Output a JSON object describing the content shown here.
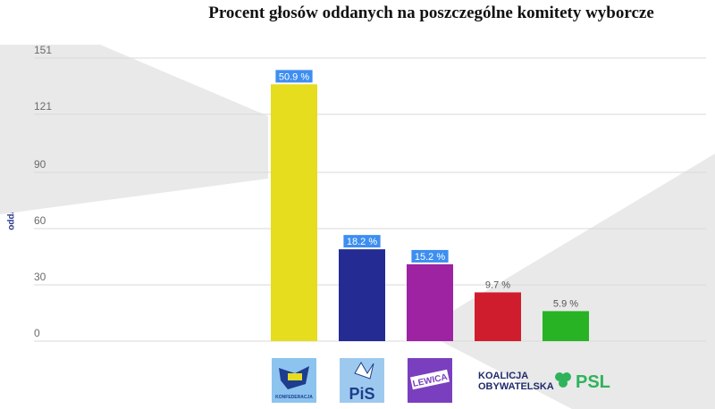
{
  "chart_data": {
    "type": "bar",
    "title": "Procent głosów oddanych na poszczególne komitety wyborcze",
    "ylabel": "oddanych głosów",
    "xlabel": "",
    "ylim": [
      0,
      151
    ],
    "yticks": [
      0,
      30,
      60,
      90,
      121,
      151
    ],
    "grid": true,
    "categories": [
      "Konfederacja",
      "PiS",
      "Lewica",
      "Koalicja Obywatelska",
      "PSL"
    ],
    "values": [
      137,
      49,
      41,
      26,
      16
    ],
    "data_labels": [
      "50.9 %",
      "18.2 %",
      "15.2 %",
      "9.7 %",
      "5.9 %"
    ],
    "highlighted_labels": [
      true,
      true,
      true,
      false,
      false
    ],
    "colors": [
      "#e5dd1d",
      "#242b93",
      "#9d23a3",
      "#d01d2d",
      "#27b323"
    ],
    "label_highlight_color": "#3d8ef0"
  },
  "logos": {
    "konfederacja": {
      "icon": "konfederacja-logo-icon",
      "text": "KONFEDERACJA",
      "color": "#1e3d8f",
      "bg": "#8cc4ef"
    },
    "pis": {
      "icon": "pis-logo-icon",
      "text": "PiS",
      "color": "#1d3e8a",
      "bg": "#9dc9ef"
    },
    "lewica": {
      "icon": "lewica-logo-icon",
      "text": "LEWICA",
      "color": "#ffffff",
      "bg": "#7a3fbf"
    },
    "ko": {
      "icon": "koalicja-obywatelska-logo-icon",
      "line1": "KOALICJA",
      "line2": "OBYWATELSKA",
      "color": "#1f2b6b",
      "accent": "#e03040"
    },
    "psl": {
      "icon": "psl-logo-icon",
      "text": "PSL",
      "color": "#2fb35a"
    }
  }
}
